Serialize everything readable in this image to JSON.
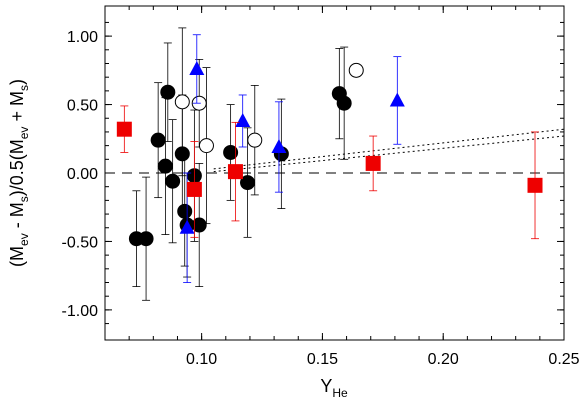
{
  "chart_data": {
    "type": "scatter",
    "xlabel": {
      "main": "Y",
      "sub": "He"
    },
    "ylabel": {
      "p1": "(M",
      "s1": "ev",
      "p2": " - M",
      "s2": "s",
      "p3": ")/0.5(M",
      "s3": "ev",
      "p4": " + M",
      "s4": "s",
      "p5": ")"
    },
    "xlim": [
      0.06,
      0.25
    ],
    "ylim": [
      -1.22,
      1.22
    ],
    "xticks": [
      0.1,
      0.15,
      0.2,
      0.25
    ],
    "xtick_labels": [
      "0.10",
      "0.15",
      "0.20",
      "0.25"
    ],
    "yticks": [
      1.0,
      0.5,
      0.0,
      -0.5,
      -1.0
    ],
    "ytick_labels": [
      "1.00",
      "0.50",
      "0.00",
      "-0.50",
      "-1.00"
    ],
    "grid": false,
    "reference_lines": [
      {
        "style": "dashed",
        "color": "#000000",
        "y": 0.0
      }
    ],
    "fit_lines": [
      {
        "style": "dotted",
        "color": "#000000",
        "x": [
          0.105,
          0.25
        ],
        "y": [
          0.03,
          0.32
        ]
      },
      {
        "style": "dotted",
        "color": "#000000",
        "x": [
          0.105,
          0.25
        ],
        "y": [
          0.01,
          0.27
        ]
      }
    ],
    "series": [
      {
        "marker": "filled-circle",
        "color": "#000000",
        "points": [
          {
            "x": 0.073,
            "y": -0.48,
            "err": 0.35
          },
          {
            "x": 0.077,
            "y": -0.48,
            "err": 0.45
          },
          {
            "x": 0.082,
            "y": 0.24,
            "err": 0.42
          },
          {
            "x": 0.085,
            "y": 0.05,
            "err": 0.5
          },
          {
            "x": 0.086,
            "y": 0.59,
            "err": 0.36
          },
          {
            "x": 0.088,
            "y": -0.06,
            "err": 0.45
          },
          {
            "x": 0.092,
            "y": 0.14,
            "err": 0.43
          },
          {
            "x": 0.093,
            "y": -0.28,
            "err": 0.4
          },
          {
            "x": 0.094,
            "y": -0.38,
            "err": 0.38
          },
          {
            "x": 0.097,
            "y": -0.02,
            "err": 0.48
          },
          {
            "x": 0.099,
            "y": -0.38,
            "err": 0.45
          },
          {
            "x": 0.112,
            "y": 0.15,
            "err": 0.35
          },
          {
            "x": 0.119,
            "y": -0.07,
            "err": 0.4
          },
          {
            "x": 0.133,
            "y": 0.14,
            "err": 0.4
          },
          {
            "x": 0.157,
            "y": 0.58,
            "err": 0.33
          },
          {
            "x": 0.159,
            "y": 0.51,
            "err": 0.41
          }
        ]
      },
      {
        "marker": "open-circle",
        "color": "#000000",
        "points": [
          {
            "x": 0.092,
            "y": 0.52,
            "err": 0.54
          },
          {
            "x": 0.099,
            "y": 0.51,
            "err": 0.32
          },
          {
            "x": 0.102,
            "y": 0.2,
            "err": 0.57
          },
          {
            "x": 0.122,
            "y": 0.24,
            "err": 0.4
          },
          {
            "x": 0.164,
            "y": 0.75,
            "err": 0.0
          }
        ]
      },
      {
        "marker": "triangle",
        "color": "#0000ff",
        "points": [
          {
            "x": 0.094,
            "y": -0.4,
            "err": 0.4
          },
          {
            "x": 0.098,
            "y": 0.76,
            "err": 0.25
          },
          {
            "x": 0.117,
            "y": 0.38,
            "err": 0.19
          },
          {
            "x": 0.132,
            "y": 0.19,
            "err": 0.33
          },
          {
            "x": 0.181,
            "y": 0.53,
            "err": 0.32
          }
        ]
      },
      {
        "marker": "square",
        "color": "#ee0000",
        "points": [
          {
            "x": 0.068,
            "y": 0.32,
            "err": 0.17
          },
          {
            "x": 0.097,
            "y": -0.12,
            "err": 0.35
          },
          {
            "x": 0.114,
            "y": 0.01,
            "err": 0.36
          },
          {
            "x": 0.171,
            "y": 0.07,
            "err": 0.2
          },
          {
            "x": 0.238,
            "y": -0.09,
            "err": 0.39
          }
        ]
      }
    ]
  }
}
